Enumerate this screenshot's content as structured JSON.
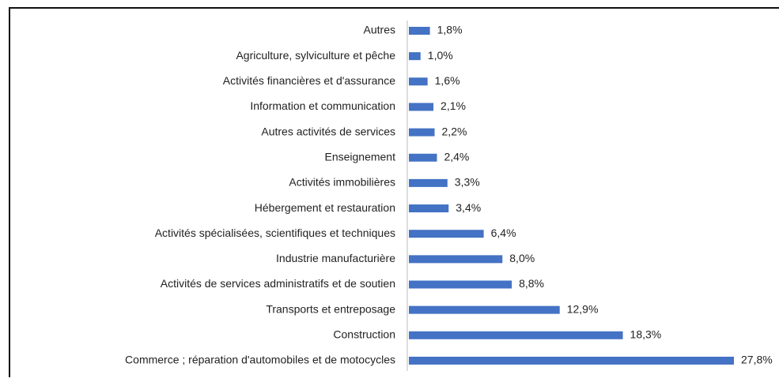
{
  "chart_data": {
    "type": "bar",
    "orientation": "horizontal",
    "categories": [
      "Autres",
      "Agriculture, sylviculture et pêche",
      "Activités financières et d'assurance",
      "Information et communication",
      "Autres activités de services",
      "Enseignement",
      "Activités immobilières",
      "Hébergement et restauration",
      "Activités spécialisées, scientifiques et techniques",
      "Industrie manufacturière",
      "Activités de services administratifs et de soutien",
      "Transports et entreposage",
      "Construction",
      "Commerce ; réparation d'automobiles et de motocycles"
    ],
    "values": [
      1.8,
      1.0,
      1.6,
      2.1,
      2.2,
      2.4,
      3.3,
      3.4,
      6.4,
      8.0,
      8.8,
      12.9,
      18.3,
      27.8
    ],
    "value_labels": [
      "1,8%",
      "1,0%",
      "1,6%",
      "2,1%",
      "2,2%",
      "2,4%",
      "3,3%",
      "3,4%",
      "6,4%",
      "8,0%",
      "8,8%",
      "12,9%",
      "18,3%",
      "27,8%"
    ],
    "color": "#4472c4"
  }
}
